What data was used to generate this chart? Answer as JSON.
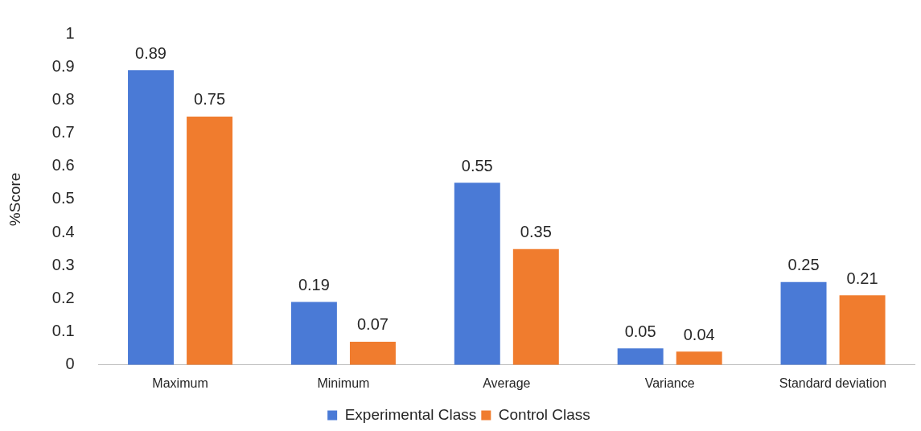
{
  "chart_data": {
    "type": "bar",
    "ylabel": "%Score",
    "categories": [
      "Maximum",
      "Minimum",
      "Average",
      "Variance",
      "Standard deviation"
    ],
    "series": [
      {
        "name": "Experimental Class",
        "color": "#4a7ad6",
        "values": [
          0.89,
          0.19,
          0.55,
          0.05,
          0.25
        ]
      },
      {
        "name": "Control Class",
        "color": "#f07c2e",
        "values": [
          0.75,
          0.07,
          0.35,
          0.04,
          0.21
        ]
      }
    ],
    "ylim": [
      0,
      1
    ],
    "yticks": [
      0,
      0.1,
      0.2,
      0.3,
      0.4,
      0.5,
      0.6,
      0.7,
      0.8,
      0.9,
      1
    ],
    "grid": false,
    "legend": "bottom",
    "data_labels": true
  }
}
